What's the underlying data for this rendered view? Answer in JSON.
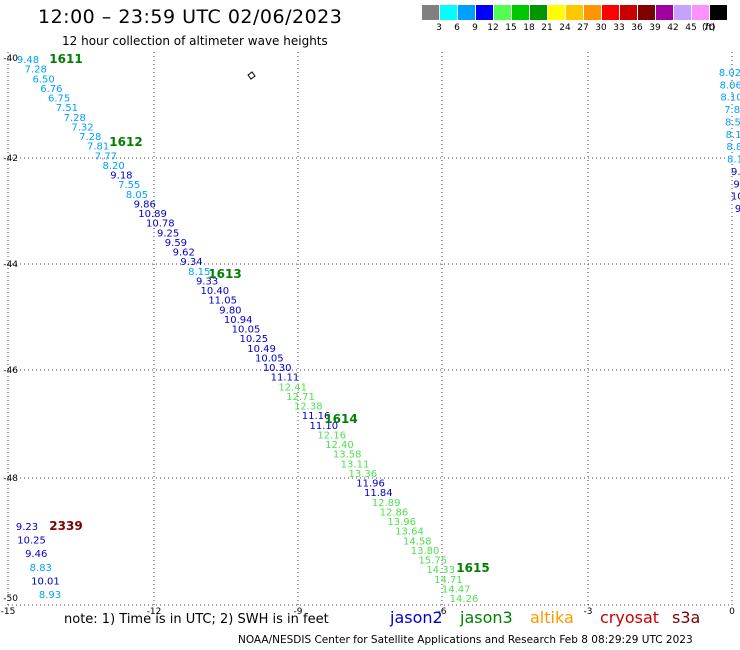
{
  "title": "12:00 – 23:59 UTC 02/06/2023",
  "subtitle": "12 hour collection of altimeter wave heights",
  "color_scale": {
    "unit": "(ft)",
    "bins": [
      {
        "label": "3",
        "color": "#808080"
      },
      {
        "label": "6",
        "color": "#00ffff"
      },
      {
        "label": "9",
        "color": "#00a0ff"
      },
      {
        "label": "12",
        "color": "#0000ff"
      },
      {
        "label": "15",
        "color": "#50ff50"
      },
      {
        "label": "18",
        "color": "#00c800"
      },
      {
        "label": "21",
        "color": "#009600"
      },
      {
        "label": "24",
        "color": "#ffff00"
      },
      {
        "label": "27",
        "color": "#ffc800"
      },
      {
        "label": "30",
        "color": "#ff9600"
      },
      {
        "label": "33",
        "color": "#ff0000"
      },
      {
        "label": "36",
        "color": "#c80000"
      },
      {
        "label": "39",
        "color": "#800000"
      },
      {
        "label": "42",
        "color": "#a000a0"
      },
      {
        "label": "45",
        "color": "#c8a0ff"
      },
      {
        "label": "70",
        "color": "#ff90ff"
      },
      {
        "label": "",
        "color": "#000000"
      }
    ]
  },
  "axes": {
    "lat_labels": [
      "-40",
      "-42",
      "-44",
      "-46",
      "-48",
      "-50"
    ],
    "lon_labels": [
      "-15",
      "-12",
      "-9",
      "-6",
      "-3",
      "0"
    ]
  },
  "passes": [
    {
      "label": "1611",
      "color": "#008000"
    },
    {
      "label": "1612",
      "color": "#008000"
    },
    {
      "label": "1613",
      "color": "#008000"
    },
    {
      "label": "1614",
      "color": "#008000"
    },
    {
      "label": "1615",
      "color": "#008000"
    },
    {
      "label": "2339",
      "color": "#800000"
    }
  ],
  "track_main": [
    {
      "v": "9.48",
      "c": "#00a0ff"
    },
    {
      "v": "7.28",
      "c": "#00a0ff"
    },
    {
      "v": "6.50",
      "c": "#00a0ff"
    },
    {
      "v": "6.76",
      "c": "#00a0ff"
    },
    {
      "v": "6.75",
      "c": "#00a0ff"
    },
    {
      "v": "7.51",
      "c": "#00a0ff"
    },
    {
      "v": "7.28",
      "c": "#00a0ff"
    },
    {
      "v": "7.32",
      "c": "#00a0ff"
    },
    {
      "v": "7.28",
      "c": "#00a0ff"
    },
    {
      "v": "7.81",
      "c": "#00a0ff"
    },
    {
      "v": "7.77",
      "c": "#00a0ff"
    },
    {
      "v": "8.20",
      "c": "#00a0ff"
    },
    {
      "v": "9.18",
      "c": "#0000c8"
    },
    {
      "v": "7.55",
      "c": "#00a0ff"
    },
    {
      "v": "8.05",
      "c": "#00a0ff"
    },
    {
      "v": "9.86",
      "c": "#0000c8"
    },
    {
      "v": "10.89",
      "c": "#0000c8"
    },
    {
      "v": "10.78",
      "c": "#0000c8"
    },
    {
      "v": "9.25",
      "c": "#0000c8"
    },
    {
      "v": "9.59",
      "c": "#0000c8"
    },
    {
      "v": "9.62",
      "c": "#0000c8"
    },
    {
      "v": "9.34",
      "c": "#0000c8"
    },
    {
      "v": "8.15",
      "c": "#00a0ff"
    },
    {
      "v": "9.33",
      "c": "#0000c8"
    },
    {
      "v": "10.40",
      "c": "#0000c8"
    },
    {
      "v": "11.05",
      "c": "#0000c8"
    },
    {
      "v": "9.80",
      "c": "#0000c8"
    },
    {
      "v": "10.94",
      "c": "#0000c8"
    },
    {
      "v": "10.05",
      "c": "#0000c8"
    },
    {
      "v": "10.25",
      "c": "#0000c8"
    },
    {
      "v": "10.49",
      "c": "#0000c8"
    },
    {
      "v": "10.05",
      "c": "#0000c8"
    },
    {
      "v": "10.30",
      "c": "#0000c8"
    },
    {
      "v": "11.11",
      "c": "#0000c8"
    },
    {
      "v": "12.41",
      "c": "#50e050"
    },
    {
      "v": "12.71",
      "c": "#50e050"
    },
    {
      "v": "12.38",
      "c": "#50e050"
    },
    {
      "v": "11.16",
      "c": "#0000c8"
    },
    {
      "v": "11.10",
      "c": "#0000c8"
    },
    {
      "v": "12.16",
      "c": "#50e050"
    },
    {
      "v": "12.40",
      "c": "#50e050"
    },
    {
      "v": "13.58",
      "c": "#50e050"
    },
    {
      "v": "13.11",
      "c": "#50e050"
    },
    {
      "v": "13.36",
      "c": "#50e050"
    },
    {
      "v": "11.96",
      "c": "#0000c8"
    },
    {
      "v": "11.84",
      "c": "#0000c8"
    },
    {
      "v": "12.89",
      "c": "#50e050"
    },
    {
      "v": "12.86",
      "c": "#50e050"
    },
    {
      "v": "13.96",
      "c": "#50e050"
    },
    {
      "v": "13.64",
      "c": "#50e050"
    },
    {
      "v": "14.58",
      "c": "#50e050"
    },
    {
      "v": "13.80",
      "c": "#50e050"
    },
    {
      "v": "15.75",
      "c": "#50e050"
    },
    {
      "v": "14.33",
      "c": "#50e050"
    },
    {
      "v": "14.71",
      "c": "#50e050"
    },
    {
      "v": "14.47",
      "c": "#50e050"
    },
    {
      "v": "14.26",
      "c": "#50e050"
    }
  ],
  "track_2339": [
    {
      "v": "9.23",
      "c": "#0000c8"
    },
    {
      "v": "10.25",
      "c": "#0000c8"
    },
    {
      "v": "9.46",
      "c": "#0000c8"
    },
    {
      "v": "8.83",
      "c": "#00a0ff"
    },
    {
      "v": "10.01",
      "c": "#0000c8"
    },
    {
      "v": "8.93",
      "c": "#00a0ff"
    }
  ],
  "track_edge": [
    {
      "v": "8.02",
      "c": "#00a0ff"
    },
    {
      "v": "8.06",
      "c": "#00a0ff"
    },
    {
      "v": "8.10",
      "c": "#00a0ff"
    },
    {
      "v": "7.8",
      "c": "#00a0ff"
    },
    {
      "v": "8.5",
      "c": "#00a0ff"
    },
    {
      "v": "8.1",
      "c": "#00a0ff"
    },
    {
      "v": "8.8",
      "c": "#00a0ff"
    },
    {
      "v": "8.1",
      "c": "#00a0ff"
    },
    {
      "v": "9.",
      "c": "#0000c8"
    },
    {
      "v": "9",
      "c": "#0000c8"
    },
    {
      "v": "10",
      "c": "#0000c8"
    },
    {
      "v": "9",
      "c": "#0000c8"
    }
  ],
  "footer": {
    "note": "note:  1) Time is in UTC;  2) SWH is in feet",
    "legend": [
      {
        "label": "jason2",
        "color": "#0000c8"
      },
      {
        "label": "jason3",
        "color": "#008000"
      },
      {
        "label": "altika",
        "color": "#ff9600"
      },
      {
        "label": "cryosat",
        "color": "#c80000"
      },
      {
        "label": "s3a",
        "color": "#800000"
      }
    ],
    "credit": "NOAA/NESDIS Center for Satellite Applications and Research    Feb  8 08:29:29 UTC 2023"
  }
}
